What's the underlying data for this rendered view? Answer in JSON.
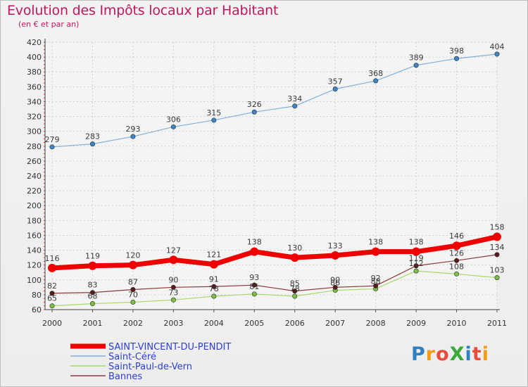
{
  "header": {
    "title": "Evolution des Impôts locaux par Habitant",
    "subtitle": "(en € et par an)"
  },
  "logo": {
    "text": "ProXiti",
    "colors": [
      "#2f7fc1",
      "#f39c12",
      "#e74c3c",
      "#3aa83a",
      "#2f7fc1",
      "#e74c3c",
      "#f39c12"
    ]
  },
  "chart_data": {
    "type": "line",
    "x": [
      "2000",
      "2001",
      "2002",
      "2003",
      "2004",
      "2005",
      "2006",
      "2007",
      "2008",
      "2009",
      "2010",
      "2011"
    ],
    "ylim": [
      60,
      420
    ],
    "yticks": [
      60,
      80,
      100,
      120,
      140,
      160,
      180,
      200,
      220,
      240,
      260,
      280,
      300,
      320,
      340,
      360,
      380,
      400,
      420
    ],
    "grid": true,
    "legend_position": "bottom-left",
    "series": [
      {
        "name": "SAINT-VINCENT-DU-PENDIT",
        "color": "#ee0000",
        "marker": "#ee0000",
        "bold": true,
        "values": [
          116,
          119,
          120,
          127,
          121,
          138,
          130,
          133,
          138,
          138,
          146,
          158
        ]
      },
      {
        "name": "Saint-Céré",
        "color": "#7fb0dc",
        "marker": "#3d85c6",
        "bold": false,
        "values": [
          279,
          283,
          293,
          306,
          315,
          326,
          334,
          357,
          368,
          389,
          398,
          404
        ]
      },
      {
        "name": "Saint-Paul-de-Vern",
        "color": "#a6d96a",
        "marker": "#7bc043",
        "bold": false,
        "values": [
          65,
          68,
          70,
          73,
          78,
          81,
          78,
          86,
          88,
          112,
          108,
          103
        ]
      },
      {
        "name": "Bannes",
        "color": "#8c3a3a",
        "marker": "#5a1a1a",
        "bold": false,
        "values": [
          82,
          83,
          87,
          90,
          91,
          93,
          85,
          90,
          92,
          119,
          126,
          134
        ]
      }
    ]
  }
}
